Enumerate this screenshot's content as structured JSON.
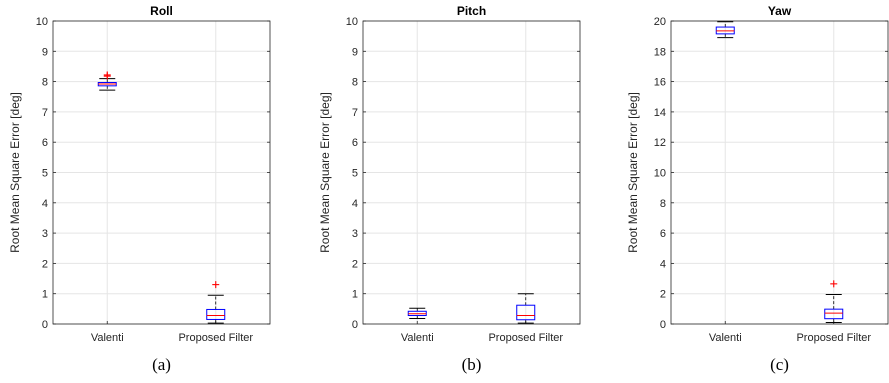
{
  "chart_data": [
    {
      "type": "box",
      "title": "Roll",
      "caption": "(a)",
      "xlabel": "",
      "ylabel": "Root Mean Square Error [deg]",
      "ylim": [
        0,
        10
      ],
      "yticks": [
        0,
        1,
        2,
        3,
        4,
        5,
        6,
        7,
        8,
        9,
        10
      ],
      "grid": true,
      "categories": [
        "Valenti",
        "Proposed Filter"
      ],
      "boxes": [
        {
          "whisker_low": 7.72,
          "q1": 7.86,
          "median": 7.92,
          "q3": 7.97,
          "whisker_high": 8.1,
          "outliers": [
            8.18,
            8.22
          ]
        },
        {
          "whisker_low": 0.03,
          "q1": 0.15,
          "median": 0.28,
          "q3": 0.48,
          "whisker_high": 0.95,
          "outliers": [
            1.3
          ]
        }
      ]
    },
    {
      "type": "box",
      "title": "Pitch",
      "caption": "(b)",
      "xlabel": "",
      "ylabel": "Root Mean Square Error [deg]",
      "ylim": [
        0,
        10
      ],
      "yticks": [
        0,
        1,
        2,
        3,
        4,
        5,
        6,
        7,
        8,
        9,
        10
      ],
      "grid": true,
      "categories": [
        "Valenti",
        "Proposed Filter"
      ],
      "boxes": [
        {
          "whisker_low": 0.18,
          "q1": 0.28,
          "median": 0.34,
          "q3": 0.42,
          "whisker_high": 0.52,
          "outliers": []
        },
        {
          "whisker_low": 0.03,
          "q1": 0.14,
          "median": 0.28,
          "q3": 0.62,
          "whisker_high": 1.0,
          "outliers": []
        }
      ]
    },
    {
      "type": "box",
      "title": "Yaw",
      "caption": "(c)",
      "xlabel": "",
      "ylabel": "Root Mean Square Error [deg]",
      "ylim": [
        0,
        20
      ],
      "yticks": [
        0,
        2,
        4,
        6,
        8,
        10,
        12,
        14,
        16,
        18,
        20
      ],
      "grid": true,
      "categories": [
        "Valenti",
        "Proposed Filter"
      ],
      "boxes": [
        {
          "whisker_low": 18.9,
          "q1": 19.15,
          "median": 19.35,
          "q3": 19.6,
          "whisker_high": 19.95,
          "outliers": []
        },
        {
          "whisker_low": 0.1,
          "q1": 0.35,
          "median": 0.72,
          "q3": 0.98,
          "whisker_high": 1.95,
          "outliers": [
            2.65
          ]
        }
      ]
    }
  ],
  "colors": {
    "box": "#0000ff",
    "median": "#ff0000",
    "whisker": "#000000",
    "outlier": "#ff0000",
    "grid": "#e5e5e5",
    "axis": "#262626"
  }
}
